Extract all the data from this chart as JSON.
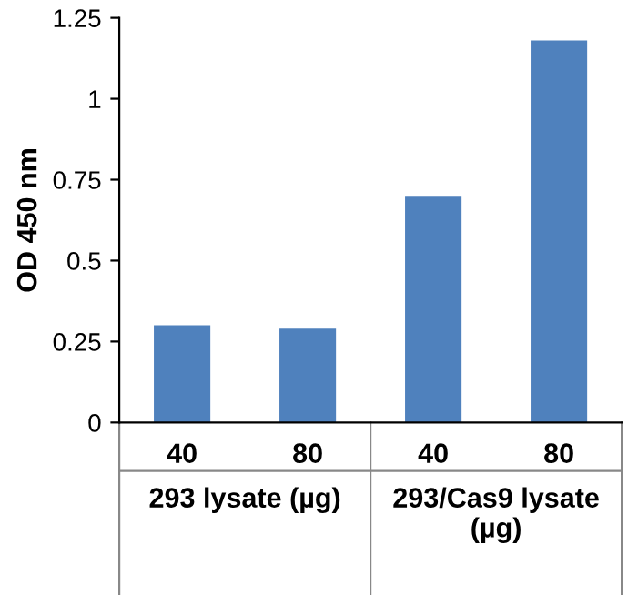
{
  "chart_data": {
    "type": "bar",
    "ylabel": "OD 450 nm",
    "categories": [
      "40",
      "80",
      "40",
      "80"
    ],
    "values": [
      0.3,
      0.29,
      0.7,
      1.18
    ],
    "color": "#4f81bd",
    "ylim": [
      0,
      1.25
    ],
    "yticks": [
      0,
      0.25,
      0.5,
      0.75,
      1,
      1.25
    ],
    "grid": false,
    "annotations": [
      "293 lysate (µg)",
      "293/Cas9 lysate\n(µg)"
    ]
  }
}
